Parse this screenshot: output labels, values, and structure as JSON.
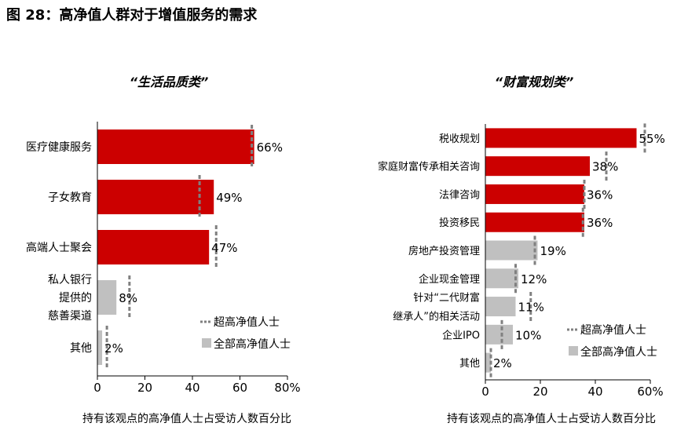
{
  "title": "图 28：高净值人群对于增值服务的需求",
  "colors": {
    "high": "#cc0000",
    "low": "#c0c0c0",
    "marker": "#808080"
  },
  "chart_data": [
    {
      "type": "bar",
      "orientation": "horizontal",
      "title": "“生活品质类”",
      "xlabel": "持有该观点的高净值人士占受访人数百分比",
      "xlim": [
        0,
        80
      ],
      "xticks": [
        "0",
        "20",
        "40",
        "60",
        "80%"
      ],
      "categories": [
        "医疗健康服务",
        "子女教育",
        "高端人士聚会",
        "私人银行\n提供的\n慈善渠道",
        "其他"
      ],
      "series": [
        {
          "name": "全部高净值人士",
          "values": [
            66,
            49,
            47,
            8,
            2
          ],
          "labels": [
            "66%",
            "49%",
            "47%",
            "8%",
            "2%"
          ],
          "highlight": [
            true,
            true,
            true,
            false,
            false
          ]
        },
        {
          "name": "超高净值人士",
          "values": [
            65,
            43,
            50,
            13.5,
            4
          ],
          "style": "dashed-marker"
        }
      ],
      "legend": "bottom-right"
    },
    {
      "type": "bar",
      "orientation": "horizontal",
      "title": "“财富规划类”",
      "xlabel": "持有该观点的高净值人士占受访人数百分比",
      "xlim": [
        0,
        60
      ],
      "xticks": [
        "0",
        "20",
        "40",
        "60%"
      ],
      "categories": [
        "税收规划",
        "家庭财富传承相关咨询",
        "法律咨询",
        "投资移民",
        "房地产投资管理",
        "企业现金管理",
        "针对“二代财富\n继承人”的相关活动",
        "企业IPO",
        "其他"
      ],
      "series": [
        {
          "name": "全部高净值人士",
          "values": [
            55,
            38,
            36,
            36,
            19,
            12,
            11,
            10,
            2
          ],
          "labels": [
            "55%",
            "38%",
            "36%",
            "36%",
            "19%",
            "12%",
            "11%",
            "10%",
            "2%"
          ],
          "highlight": [
            true,
            true,
            true,
            true,
            false,
            false,
            false,
            false,
            false
          ]
        },
        {
          "name": "超高净值人士",
          "values": [
            58,
            44,
            36,
            35.5,
            18,
            11,
            16.5,
            6,
            2
          ],
          "style": "dashed-marker"
        }
      ],
      "legend": "bottom-right"
    }
  ]
}
